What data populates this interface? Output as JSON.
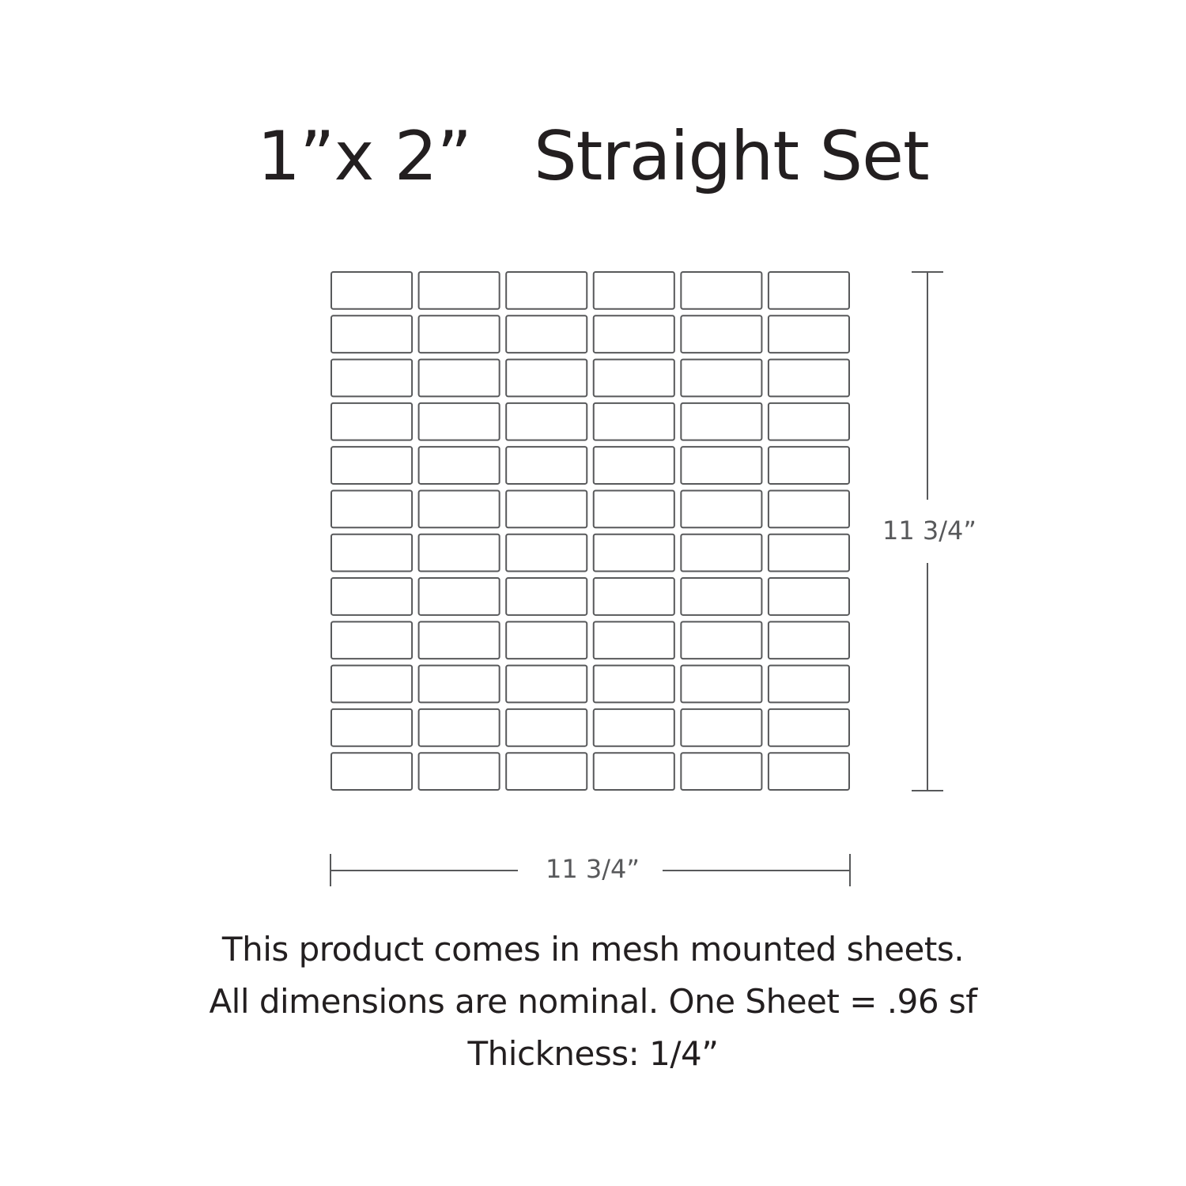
{
  "title": "1”x 2”   Straight Set",
  "sheet": {
    "columns": 6,
    "rows": 12,
    "tile_color": "#58595b"
  },
  "dimensions": {
    "height_label": "11 3/4”",
    "width_label": "11 3/4”"
  },
  "notes": [
    "This product comes in mesh mounted sheets.",
    "All dimensions are nominal. One Sheet = .96 sf",
    "Thickness: 1/4”"
  ]
}
